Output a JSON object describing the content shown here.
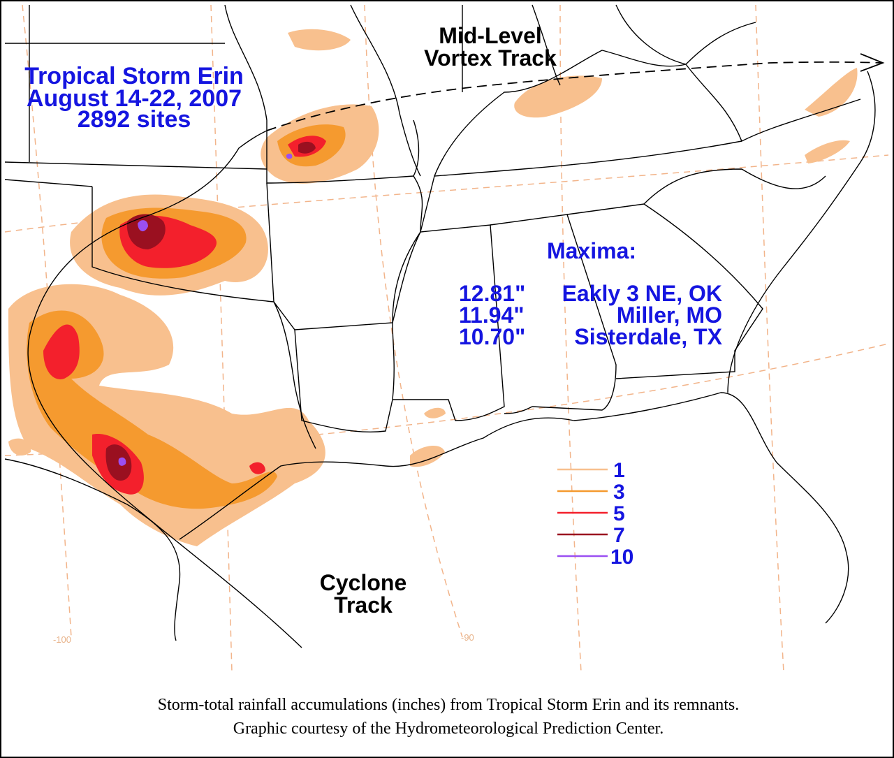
{
  "title": {
    "line1": "Tropical Storm Erin",
    "line2": "August 14-22, 2007",
    "line3": "2892 sites"
  },
  "tracks": {
    "vortex_line1": "Mid-Level",
    "vortex_line2": "Vortex Track",
    "cyclone_line1": "Cyclone",
    "cyclone_line2": "Track"
  },
  "maxima": {
    "heading": "Maxima:",
    "rows": [
      {
        "amount": "12.81\"",
        "location": "Eakly 3 NE, OK"
      },
      {
        "amount": "11.94\"",
        "location": "Miller, MO"
      },
      {
        "amount": "10.70\"",
        "location": "Sisterdale, TX"
      }
    ]
  },
  "legend": {
    "units": "inches",
    "levels": [
      {
        "value": "1",
        "color": "#f8c08e"
      },
      {
        "value": "3",
        "color": "#f59a2f"
      },
      {
        "value": "5",
        "color": "#f3202c"
      },
      {
        "value": "7",
        "color": "#9a1020"
      },
      {
        "value": "10",
        "color": "#9b4ff2"
      }
    ]
  },
  "longitude_labels": [
    "-100",
    "-90"
  ],
  "colors": {
    "title_text": "#1515e0",
    "graticule": "#f2b48a",
    "borders": "#000000"
  },
  "caption": {
    "line1": "Storm-total rainfall accumulations (inches) from Tropical Storm Erin and its remnants.",
    "line2": "Graphic courtesy of the Hydrometeorological Prediction Center."
  }
}
